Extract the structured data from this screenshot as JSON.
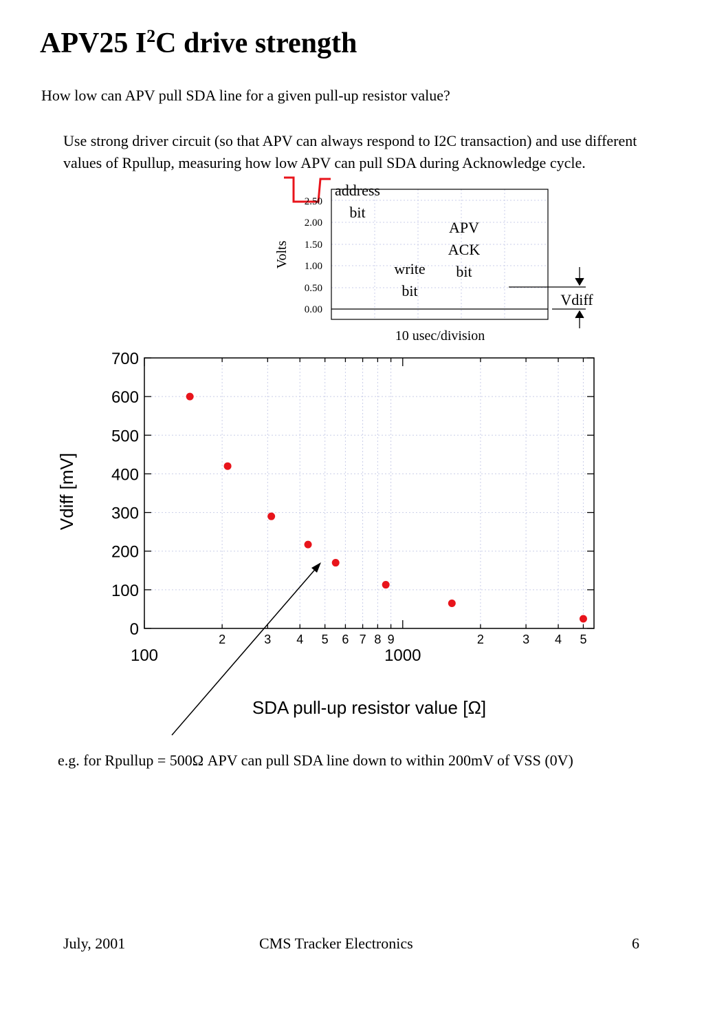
{
  "header": {
    "title_pre": "APV25 I",
    "title_sup": "2",
    "title_post": "C drive strength"
  },
  "intro": {
    "question": "How low can APV pull SDA line for a given pull-up resistor value?",
    "method": "Use strong driver circuit (so that APV can always respond to I2C transaction) and use different values of Rpullup, measuring how low APV can pull SDA during Acknowledge cycle."
  },
  "scope": {
    "ylabel": "Volts",
    "xlabel": "10 usec/division",
    "ticks": [
      "2.50",
      "2.00",
      "1.50",
      "1.00",
      "0.50",
      "0.00"
    ],
    "labels": {
      "address_1": "address",
      "address_2": "bit",
      "write_1": "write",
      "write_2": "bit",
      "ack_1": "APV",
      "ack_2": "ACK",
      "ack_3": "bit",
      "vdiff": "Vdiff"
    }
  },
  "chart_data": {
    "type": "scatter",
    "x_scale": "log",
    "x": [
      150,
      210,
      310,
      430,
      550,
      860,
      1550,
      5000
    ],
    "y": [
      600,
      420,
      290,
      217,
      170,
      113,
      65,
      25
    ],
    "xlim": [
      100,
      5500
    ],
    "ylim": [
      0,
      700
    ],
    "xlabel": "SDA pull-up resistor value [Ω]",
    "ylabel": "Vdiff [mV]",
    "ytick_labels": [
      "0",
      "100",
      "200",
      "300",
      "400",
      "500",
      "600",
      "700"
    ],
    "x_major_tick_labels": [
      "100",
      "1000"
    ],
    "x_minor_tick_labels": [
      "2",
      "3",
      "4",
      "5",
      "6",
      "7",
      "8",
      "9",
      "2",
      "3",
      "4",
      "5"
    ],
    "grid": true,
    "marker_color": "#e8141b"
  },
  "annotation": {
    "text": "e.g. for Rpullup = 500Ω APV can pull SDA line down to within 200mV of VSS (0V)"
  },
  "footer": {
    "date": "July, 2001",
    "center": "CMS Tracker Electronics",
    "page": "6"
  }
}
